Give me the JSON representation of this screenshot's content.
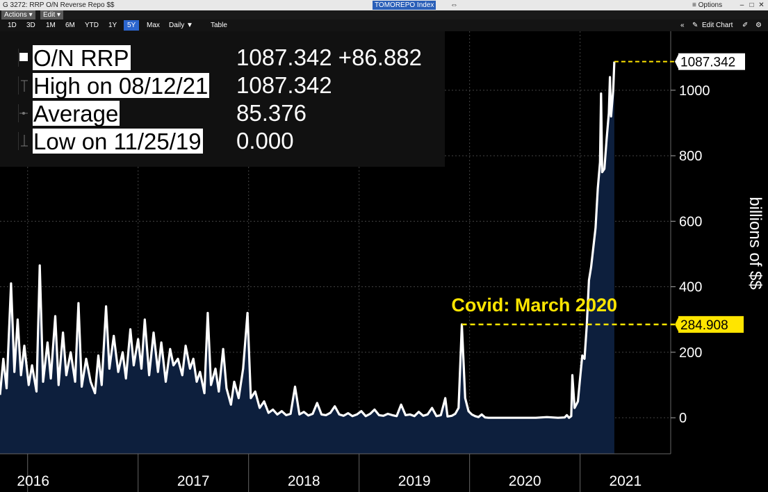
{
  "titlebar": {
    "app": "G 3272: RRP O/N Reverse Repo $$",
    "ticker": "TOMOREPO Index",
    "options": "≡ Options"
  },
  "menu": {
    "actions": "Actions ▾",
    "edit": "Edit ▾"
  },
  "toolbar": {
    "ranges": [
      "1D",
      "3D",
      "1M",
      "6M",
      "YTD",
      "1Y",
      "5Y",
      "Max"
    ],
    "active_range": "5Y",
    "frequency": "Daily ▼",
    "table": "Table",
    "edit_chart": "Edit Chart"
  },
  "legend": {
    "name": "O/N RRP",
    "last": "1087.342 +86.882",
    "high_label": "High on 08/12/21",
    "high_value": "1087.342",
    "avg_label": "Average",
    "avg_value": "85.376",
    "low_label": "Low on 11/25/19",
    "low_value": "0.000"
  },
  "colors": {
    "line": "#ffffff",
    "area": "#0d1f3d",
    "annotation": "#ffe500",
    "grid": "#444444"
  },
  "chart_data": {
    "type": "area",
    "ylabel": "billions of $$",
    "ylim": [
      -110,
      1180
    ],
    "yticks": [
      0,
      200,
      400,
      600,
      800,
      1000
    ],
    "xlim": [
      2015.75,
      2021.82
    ],
    "year_ticks": [
      {
        "label": "2016",
        "x": 2016.0
      },
      {
        "label": "2017",
        "x": 2017.0
      },
      {
        "label": "2018",
        "x": 2018.0
      },
      {
        "label": "2019",
        "x": 2019.0
      },
      {
        "label": "2020",
        "x": 2020.0
      },
      {
        "label": "2021",
        "x": 2021.0
      }
    ],
    "last_value_label": "1087.342",
    "annotation": {
      "text": "Covid: March 2020",
      "value": 284.908,
      "value_label": "284.908"
    },
    "series": [
      {
        "points": [
          [
            2015.75,
            70
          ],
          [
            2015.78,
            180
          ],
          [
            2015.81,
            90
          ],
          [
            2015.85,
            410
          ],
          [
            2015.88,
            140
          ],
          [
            2015.91,
            300
          ],
          [
            2015.94,
            130
          ],
          [
            2015.97,
            220
          ],
          [
            2016.01,
            100
          ],
          [
            2016.04,
            160
          ],
          [
            2016.08,
            80
          ],
          [
            2016.11,
            465
          ],
          [
            2016.14,
            110
          ],
          [
            2016.18,
            230
          ],
          [
            2016.21,
            120
          ],
          [
            2016.25,
            310
          ],
          [
            2016.28,
            100
          ],
          [
            2016.32,
            260
          ],
          [
            2016.35,
            130
          ],
          [
            2016.39,
            200
          ],
          [
            2016.43,
            110
          ],
          [
            2016.46,
            350
          ],
          [
            2016.49,
            95
          ],
          [
            2016.53,
            180
          ],
          [
            2016.57,
            110
          ],
          [
            2016.61,
            75
          ],
          [
            2016.64,
            190
          ],
          [
            2016.67,
            100
          ],
          [
            2016.71,
            340
          ],
          [
            2016.74,
            150
          ],
          [
            2016.78,
            250
          ],
          [
            2016.82,
            140
          ],
          [
            2016.86,
            200
          ],
          [
            2016.89,
            120
          ],
          [
            2016.93,
            270
          ],
          [
            2016.96,
            160
          ],
          [
            2017.0,
            240
          ],
          [
            2017.03,
            150
          ],
          [
            2017.06,
            300
          ],
          [
            2017.1,
            130
          ],
          [
            2017.14,
            260
          ],
          [
            2017.18,
            140
          ],
          [
            2017.21,
            230
          ],
          [
            2017.25,
            110
          ],
          [
            2017.29,
            210
          ],
          [
            2017.32,
            160
          ],
          [
            2017.36,
            180
          ],
          [
            2017.4,
            130
          ],
          [
            2017.43,
            220
          ],
          [
            2017.47,
            150
          ],
          [
            2017.5,
            180
          ],
          [
            2017.53,
            110
          ],
          [
            2017.56,
            140
          ],
          [
            2017.6,
            75
          ],
          [
            2017.63,
            320
          ],
          [
            2017.66,
            100
          ],
          [
            2017.7,
            150
          ],
          [
            2017.73,
            80
          ],
          [
            2017.77,
            210
          ],
          [
            2017.8,
            90
          ],
          [
            2017.84,
            40
          ],
          [
            2017.87,
            110
          ],
          [
            2017.91,
            60
          ],
          [
            2017.95,
            150
          ],
          [
            2017.99,
            320
          ],
          [
            2018.02,
            60
          ],
          [
            2018.06,
            80
          ],
          [
            2018.1,
            30
          ],
          [
            2018.14,
            50
          ],
          [
            2018.18,
            15
          ],
          [
            2018.22,
            25
          ],
          [
            2018.26,
            10
          ],
          [
            2018.3,
            20
          ],
          [
            2018.34,
            8
          ],
          [
            2018.38,
            12
          ],
          [
            2018.42,
            95
          ],
          [
            2018.46,
            10
          ],
          [
            2018.5,
            18
          ],
          [
            2018.54,
            7
          ],
          [
            2018.58,
            12
          ],
          [
            2018.62,
            45
          ],
          [
            2018.66,
            10
          ],
          [
            2018.7,
            8
          ],
          [
            2018.74,
            15
          ],
          [
            2018.78,
            35
          ],
          [
            2018.82,
            10
          ],
          [
            2018.86,
            6
          ],
          [
            2018.9,
            14
          ],
          [
            2018.94,
            5
          ],
          [
            2018.98,
            10
          ],
          [
            2019.02,
            20
          ],
          [
            2019.06,
            5
          ],
          [
            2019.1,
            12
          ],
          [
            2019.14,
            25
          ],
          [
            2019.18,
            8
          ],
          [
            2019.22,
            6
          ],
          [
            2019.26,
            12
          ],
          [
            2019.3,
            8
          ],
          [
            2019.34,
            5
          ],
          [
            2019.38,
            40
          ],
          [
            2019.42,
            8
          ],
          [
            2019.46,
            10
          ],
          [
            2019.5,
            5
          ],
          [
            2019.54,
            18
          ],
          [
            2019.58,
            6
          ],
          [
            2019.62,
            10
          ],
          [
            2019.66,
            30
          ],
          [
            2019.7,
            5
          ],
          [
            2019.74,
            8
          ],
          [
            2019.78,
            60
          ],
          [
            2019.8,
            4
          ],
          [
            2019.84,
            6
          ],
          [
            2019.87,
            12
          ],
          [
            2019.9,
            30
          ],
          [
            2019.93,
            284.908
          ],
          [
            2019.96,
            60
          ],
          [
            2019.99,
            20
          ],
          [
            2020.02,
            10
          ],
          [
            2020.05,
            5
          ],
          [
            2020.08,
            2
          ],
          [
            2020.11,
            10
          ],
          [
            2020.14,
            1
          ],
          [
            2020.17,
            0
          ],
          [
            2020.3,
            0
          ],
          [
            2020.45,
            0
          ],
          [
            2020.6,
            0
          ],
          [
            2020.7,
            2
          ],
          [
            2020.8,
            0
          ],
          [
            2020.86,
            1
          ],
          [
            2020.88,
            8
          ],
          [
            2020.9,
            0
          ],
          [
            2020.92,
            5
          ],
          [
            2020.93,
            130
          ],
          [
            2020.95,
            30
          ],
          [
            2020.98,
            50
          ],
          [
            2021.0,
            120
          ],
          [
            2021.02,
            190
          ],
          [
            2021.04,
            180
          ],
          [
            2021.06,
            280
          ],
          [
            2021.08,
            420
          ],
          [
            2021.1,
            460
          ],
          [
            2021.12,
            520
          ],
          [
            2021.14,
            580
          ],
          [
            2021.16,
            700
          ],
          [
            2021.18,
            780
          ],
          [
            2021.19,
            990
          ],
          [
            2021.2,
            750
          ],
          [
            2021.22,
            760
          ],
          [
            2021.24,
            850
          ],
          [
            2021.26,
            930
          ],
          [
            2021.27,
            1040
          ],
          [
            2021.28,
            920
          ],
          [
            2021.3,
            1000
          ],
          [
            2021.31,
            1087.342
          ]
        ]
      }
    ]
  }
}
